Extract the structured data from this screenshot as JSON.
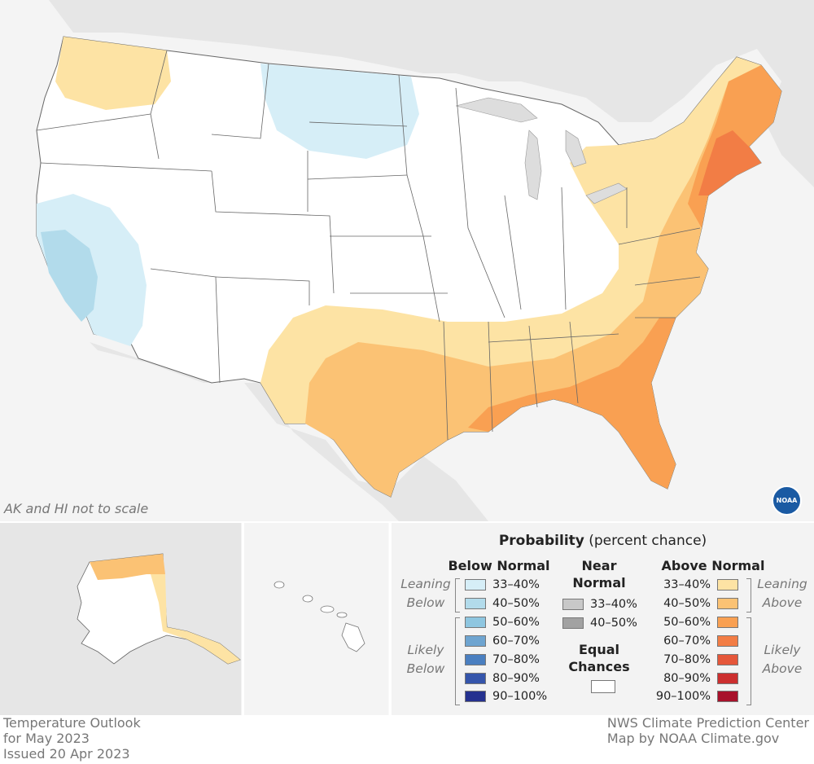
{
  "footer": {
    "title": "Temperature Outlook",
    "period": "for May 2023",
    "issued": "Issued 20 Apr 2023",
    "center": "NWS Climate Prediction Center",
    "credit": "Map by NOAA Climate.gov"
  },
  "map_note": "AK and HI not to scale",
  "noaa_logo_text": "NOAA",
  "legend": {
    "title_bold": "Probability",
    "title_rest": " (percent chance)",
    "below_heading": "Below Normal",
    "near_heading_1": "Near",
    "near_heading_2": "Normal",
    "above_heading": "Above Normal",
    "equal_heading_1": "Equal",
    "equal_heading_2": "Chances",
    "leaning_below_1": "Leaning",
    "leaning_below_2": "Below",
    "likely_below_1": "Likely",
    "likely_below_2": "Below",
    "leaning_above_1": "Leaning",
    "leaning_above_2": "Above",
    "likely_above_1": "Likely",
    "likely_above_2": "Above",
    "below": [
      {
        "label": "33–40%",
        "color": "#d6eef7"
      },
      {
        "label": "40–50%",
        "color": "#b2dbeb"
      },
      {
        "label": "50–60%",
        "color": "#8ec6e0"
      },
      {
        "label": "60–70%",
        "color": "#6ea4d0"
      },
      {
        "label": "70–80%",
        "color": "#4a7fc0"
      },
      {
        "label": "80–90%",
        "color": "#3555ab"
      },
      {
        "label": "90–100%",
        "color": "#25318f"
      }
    ],
    "near": [
      {
        "label": "33–40%",
        "color": "#c8c8c8"
      },
      {
        "label": "40–50%",
        "color": "#a2a2a2"
      }
    ],
    "above": [
      {
        "label": "33–40%",
        "color": "#fde3a4"
      },
      {
        "label": "40–50%",
        "color": "#fbc274"
      },
      {
        "label": "50–60%",
        "color": "#f9a052"
      },
      {
        "label": "60–70%",
        "color": "#f27d45"
      },
      {
        "label": "70–80%",
        "color": "#e5573a"
      },
      {
        "label": "80–90%",
        "color": "#cc2f2f"
      },
      {
        "label": "90–100%",
        "color": "#a8112b"
      }
    ]
  }
}
